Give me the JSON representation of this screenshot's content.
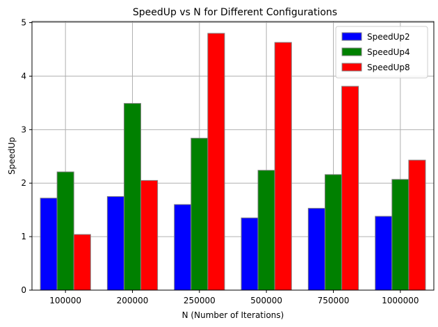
{
  "chart_data": {
    "type": "bar",
    "title": "SpeedUp vs N for Different Configurations",
    "xlabel": "N (Number of Iterations)",
    "ylabel": "SpeedUp",
    "categories": [
      "100000",
      "200000",
      "250000",
      "500000",
      "750000",
      "1000000"
    ],
    "series": [
      {
        "name": "SpeedUp2",
        "color": "#0000ff",
        "values": [
          1.72,
          1.75,
          1.6,
          1.35,
          1.53,
          1.38
        ]
      },
      {
        "name": "SpeedUp4",
        "color": "#008000",
        "values": [
          2.21,
          3.49,
          2.84,
          2.24,
          2.16,
          2.07
        ]
      },
      {
        "name": "SpeedUp8",
        "color": "#ff0000",
        "values": [
          1.04,
          2.05,
          4.8,
          4.63,
          3.81,
          2.43
        ]
      }
    ],
    "ylim": [
      0,
      5.02
    ],
    "yticks": [
      0,
      1,
      2,
      3,
      4,
      5
    ],
    "grid": true,
    "legend_position": "top-right",
    "bar_edge_color": "#808080"
  }
}
